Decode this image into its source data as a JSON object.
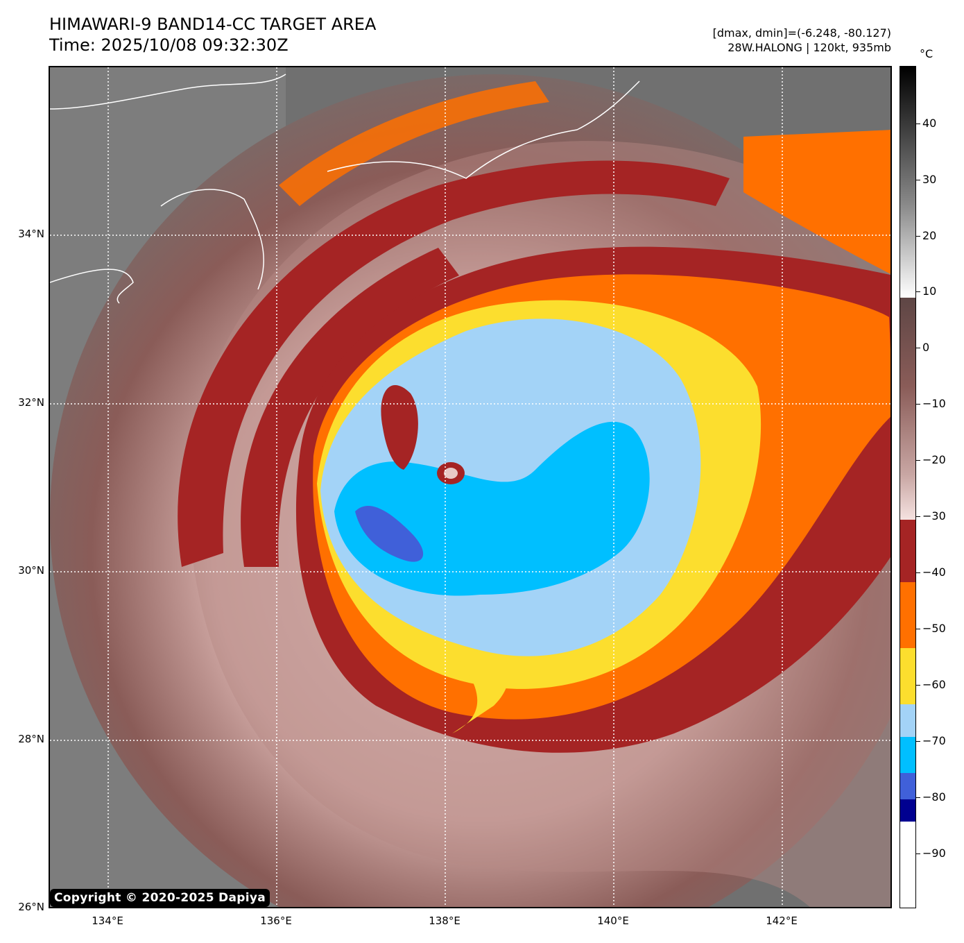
{
  "header": {
    "title_line1": "HIMAWARI-9 BAND14-CC TARGET AREA",
    "title_line2": "Time: 2025/10/08 09:32:30Z",
    "dmax_dmin": "[dmax, dmin]=(-6.248, -80.127)",
    "storm_info": "28W.HALONG | 120kt, 935mb"
  },
  "map": {
    "lat_labels": [
      "34°N",
      "32°N",
      "30°N",
      "28°N",
      "26°N"
    ],
    "lon_labels": [
      "134°E",
      "136°E",
      "138°E",
      "140°E",
      "142°E"
    ],
    "background_color": "#6e6e6e"
  },
  "colorbar": {
    "unit": "°C",
    "labels": [
      "40",
      "30",
      "20",
      "10",
      "0",
      "−10",
      "−20",
      "−30",
      "−40",
      "−50",
      "−60",
      "−70",
      "−80",
      "−90"
    ],
    "colors": {
      "warm_cloud": "#8a5c58",
      "pink_cloud": "#e9c9c6",
      "dark_red": "#a52424",
      "orange": "#ff7000",
      "yellow": "#fcde2e",
      "light_blue": "#a3d3f7",
      "cyan": "#00bfff",
      "royal_blue": "#4060d9",
      "navy": "#000090"
    }
  },
  "copyright": "Copyright © 2020-2025 Dapiya"
}
